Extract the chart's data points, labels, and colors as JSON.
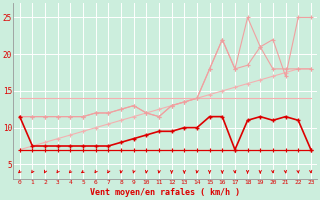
{
  "x": [
    0,
    1,
    2,
    3,
    4,
    5,
    6,
    7,
    8,
    9,
    10,
    11,
    12,
    13,
    14,
    15,
    16,
    17,
    18,
    19,
    20,
    21,
    22,
    23
  ],
  "line_flat": [
    14,
    14,
    14,
    14,
    14,
    14,
    14,
    14,
    14,
    14,
    14,
    14,
    14,
    14,
    14,
    14,
    14,
    14,
    14,
    14,
    14,
    14,
    14,
    14
  ],
  "line_flat2": [
    7,
    7,
    7,
    7,
    7,
    7,
    7,
    7,
    7,
    7,
    7,
    7,
    7,
    7,
    7,
    7,
    7,
    7,
    7,
    7,
    7,
    7,
    7,
    7
  ],
  "line_diag1": [
    7,
    7.5,
    8,
    8.5,
    9,
    9.5,
    10,
    10.5,
    11,
    11.5,
    12,
    12.5,
    13,
    13.5,
    14,
    14.5,
    15,
    15.5,
    16,
    16.5,
    17,
    17.5,
    18,
    18
  ],
  "line_zigzag1": [
    11.5,
    11.5,
    11.5,
    11.5,
    11.5,
    11.5,
    12,
    12,
    12.5,
    13,
    12,
    11.5,
    13,
    13.5,
    14,
    18,
    22,
    18,
    18.5,
    21,
    18,
    18,
    18,
    18
  ],
  "line_zigzag2": [
    11.5,
    11.5,
    11.5,
    11.5,
    11.5,
    11.5,
    12,
    12,
    12.5,
    13,
    12,
    11.5,
    13,
    13.5,
    14,
    18,
    22,
    18,
    25,
    21,
    22,
    17,
    25,
    25
  ],
  "line_mid": [
    11.5,
    7.5,
    7.5,
    7.5,
    7.5,
    7.5,
    7.5,
    7.5,
    8.0,
    8.5,
    9.0,
    9.5,
    9.5,
    10,
    10,
    11.5,
    11.5,
    7,
    11,
    11.5,
    11,
    11.5,
    11,
    7
  ],
  "color_light": "#f0a0a0",
  "color_medium": "#e06060",
  "color_dark": "#dd0000",
  "color_flat": "#f4b0b0",
  "bg_color": "#cceedd",
  "grid_color": "#ffffff",
  "xlabel": "Vent moyen/en rafales ( km/h )",
  "ylim": [
    3.0,
    27.0
  ],
  "xlim": [
    -0.5,
    23.5
  ],
  "yticks": [
    5,
    10,
    15,
    20,
    25
  ],
  "xticks": [
    0,
    1,
    2,
    3,
    4,
    5,
    6,
    7,
    8,
    9,
    10,
    11,
    12,
    13,
    14,
    15,
    16,
    17,
    18,
    19,
    20,
    21,
    22,
    23
  ]
}
